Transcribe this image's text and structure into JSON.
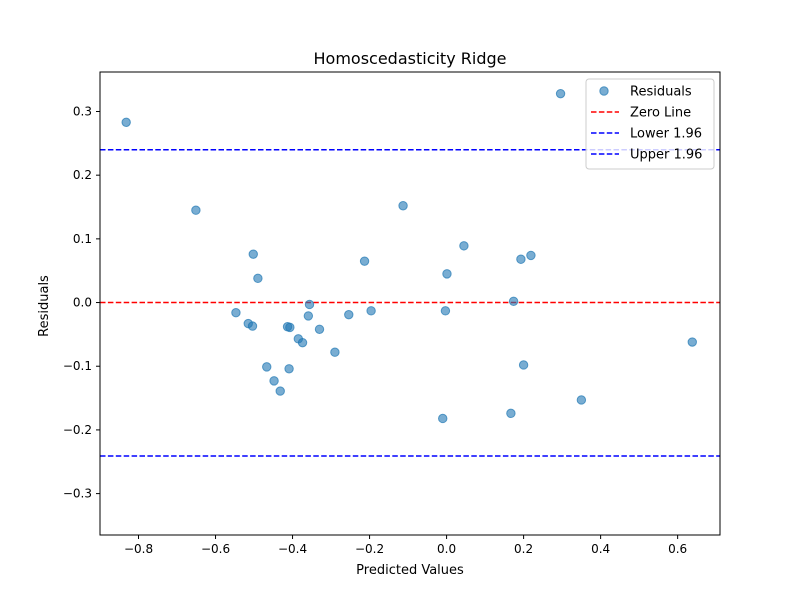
{
  "chart_data": {
    "type": "scatter",
    "title": "Homoscedasticity Ridge",
    "xlabel": "Predicted Values",
    "ylabel": "Residuals",
    "xlim": [
      -0.9,
      0.71
    ],
    "ylim": [
      -0.365,
      0.362
    ],
    "x_ticks": [
      -0.8,
      -0.6,
      -0.4,
      -0.2,
      0.0,
      0.2,
      0.4,
      0.6
    ],
    "x_tick_labels": [
      "−0.8",
      "−0.6",
      "−0.4",
      "−0.2",
      "0.0",
      "0.2",
      "0.4",
      "0.6"
    ],
    "y_ticks": [
      -0.3,
      -0.2,
      -0.1,
      0.0,
      0.1,
      0.2,
      0.3
    ],
    "y_tick_labels": [
      "−0.3",
      "−0.2",
      "−0.1",
      "0.0",
      "0.1",
      "0.2",
      "0.3"
    ],
    "grid": false,
    "legend_position": "top-right",
    "series": [
      {
        "name": "Residuals",
        "color": "#1f77b4",
        "x": [
          -0.832,
          -0.651,
          -0.547,
          -0.515,
          -0.504,
          -0.502,
          -0.49,
          -0.467,
          -0.448,
          -0.432,
          -0.413,
          -0.409,
          -0.407,
          -0.385,
          -0.374,
          -0.359,
          -0.356,
          -0.33,
          -0.29,
          -0.254,
          -0.213,
          -0.196,
          -0.113,
          -0.01,
          -0.003,
          0.001,
          0.045,
          0.167,
          0.174,
          0.193,
          0.2,
          0.219,
          0.296,
          0.35,
          0.638
        ],
        "y": [
          0.283,
          0.145,
          -0.016,
          -0.033,
          -0.037,
          0.076,
          0.038,
          -0.101,
          -0.123,
          -0.139,
          -0.038,
          -0.104,
          -0.039,
          -0.057,
          -0.063,
          -0.021,
          -0.003,
          -0.042,
          -0.078,
          -0.019,
          0.065,
          -0.013,
          0.152,
          -0.182,
          -0.013,
          0.045,
          0.089,
          -0.174,
          0.002,
          0.068,
          -0.098,
          0.074,
          0.328,
          -0.153,
          -0.062
        ]
      }
    ],
    "reference_lines": [
      {
        "name": "Zero Line",
        "y": 0.0,
        "color": "#ff0000"
      },
      {
        "name": "Lower 1.96",
        "y": -0.241,
        "color": "#0000ff"
      },
      {
        "name": "Upper 1.96",
        "y": 0.24,
        "color": "#0000ff"
      }
    ]
  }
}
